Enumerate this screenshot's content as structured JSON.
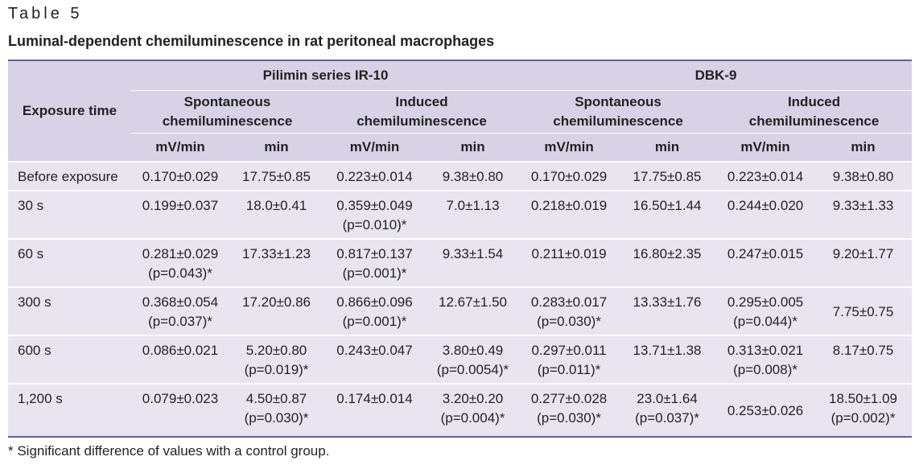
{
  "table_label": "Table 5",
  "title": "Luminal-dependent chemiluminescence in rat peritoneal macrophages",
  "header": {
    "exposure_time": "Exposure time",
    "group1": "Pilimin series IR-10",
    "group2": "DBK-9",
    "spontaneous": [
      "Spontaneous",
      "chemiluminescence"
    ],
    "induced": [
      "Induced",
      "chemiluminescence"
    ],
    "unit_mv": "mV/min",
    "unit_min": "min"
  },
  "rows": [
    {
      "label": "Before exposure",
      "cells": [
        [
          "0.170±0.029"
        ],
        [
          "17.75±0.85"
        ],
        [
          "0.223±0.014"
        ],
        [
          "9.38±0.80"
        ],
        [
          "0.170±0.029"
        ],
        [
          "17.75±0.85"
        ],
        [
          "0.223±0.014"
        ],
        [
          "9.38±0.80"
        ]
      ]
    },
    {
      "label": "30 s",
      "cells": [
        [
          "0.199±0.037"
        ],
        [
          "18.0±0.41"
        ],
        [
          "0.359±0.049",
          "(p=0.010)*"
        ],
        [
          "7.0±1.13"
        ],
        [
          "0.218±0.019"
        ],
        [
          "16.50±1.44"
        ],
        [
          "0.244±0.020"
        ],
        [
          "9.33±1.33"
        ]
      ]
    },
    {
      "label": "60 s",
      "cells": [
        [
          "0.281±0.029",
          "(p=0.043)*"
        ],
        [
          "17.33±1.23"
        ],
        [
          "0.817±0.137",
          "(p=0.001)*"
        ],
        [
          "9.33±1.54"
        ],
        [
          "0.211±0.019"
        ],
        [
          "16.80±2.35"
        ],
        [
          "0.247±0.015"
        ],
        [
          "9.20±1.77"
        ]
      ]
    },
    {
      "label": "300 s",
      "cells": [
        [
          "0.368±0.054",
          "(p=0.037)*"
        ],
        [
          "17.20±0.86"
        ],
        [
          "0.866±0.096",
          "(p=0.001)*"
        ],
        [
          "12.67±1.50"
        ],
        [
          "0.283±0.017",
          "(p=0.030)*"
        ],
        [
          "13.33±1.76"
        ],
        [
          "0.295±0.005",
          "(p=0.044)*"
        ],
        [
          "7.75±0.75"
        ]
      ]
    },
    {
      "label": "600 s",
      "cells": [
        [
          "0.086±0.021"
        ],
        [
          "5.20±0.80",
          "(p=0.019)*"
        ],
        [
          "0.243±0.047"
        ],
        [
          "3.80±0.49",
          "(p=0.0054)*"
        ],
        [
          "0.297±0.011",
          "(p=0.011)*"
        ],
        [
          "13.71±1.38"
        ],
        [
          "0.313±0.021",
          "(p=0.008)*"
        ],
        [
          "8.17±0.75"
        ]
      ]
    },
    {
      "label": "1,200 s",
      "cells": [
        [
          "0.079±0.023"
        ],
        [
          "4.50±0.87",
          "(p=0.030)*"
        ],
        [
          "0.174±0.014"
        ],
        [
          "3.20±0.20",
          "(p=0.004)*"
        ],
        [
          "0.277±0.028",
          "(p=0.030)*"
        ],
        [
          "23.0±1.64",
          "(p=0.037)*"
        ],
        [
          "0.253±0.026"
        ],
        [
          "18.50±1.09",
          "(p=0.002)*"
        ]
      ]
    }
  ],
  "footnote": "* Significant difference of values with a control group.",
  "colors": {
    "header_bg": "#d7d2e6",
    "row_bg": "#e8e5f0",
    "rule": "#6b5b95"
  }
}
